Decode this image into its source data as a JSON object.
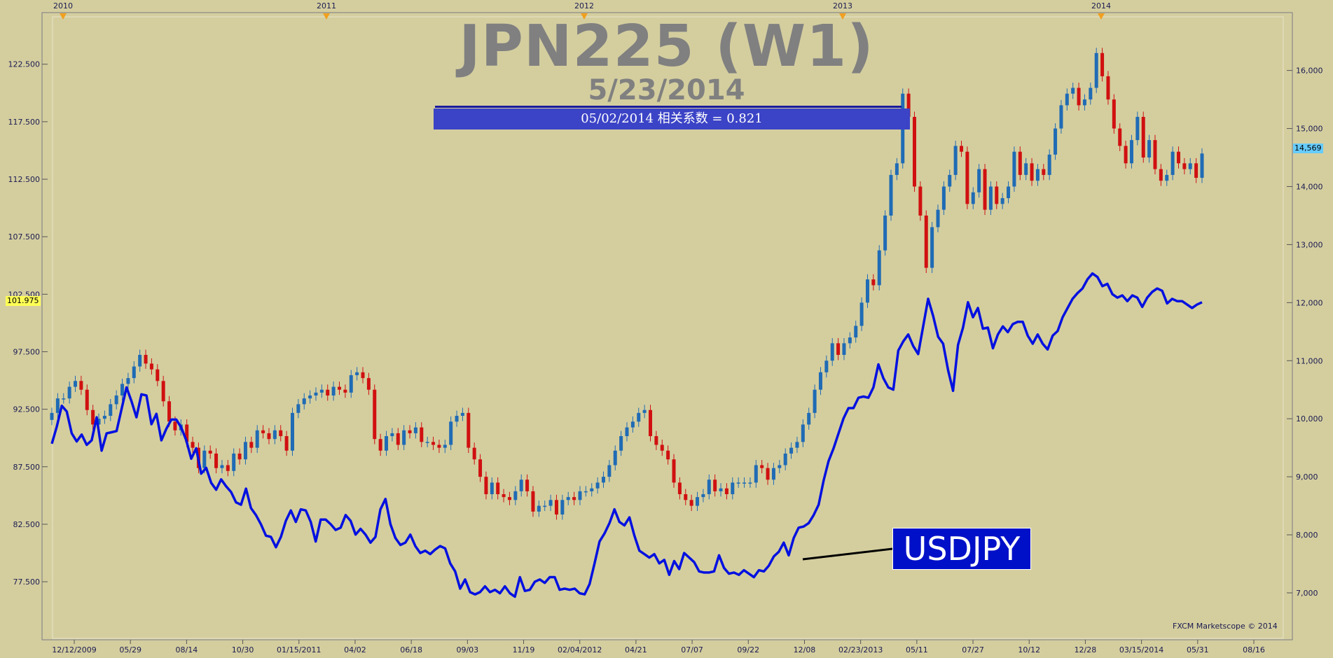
{
  "chart_title": "JPN225 (W1)",
  "chart_date": "5/23/2014",
  "correlation_label": "05/02/2014 相关系数 = 0.821",
  "usdjpy_label": "USDJPY",
  "copyright": "FXCM Marketscope © 2014",
  "left_price_tag": "101.975",
  "right_price_tag": "14,569",
  "colors": {
    "background": "#d4ce9f",
    "up_candle": "#1f6bb5",
    "down_candle": "#d01010",
    "usdjpy_line": "#0010e0",
    "label_box": "#0010c8",
    "corr_bar": "#3b43c6"
  },
  "chart_data": {
    "type": "line",
    "x_ticks_bottom": [
      "12/12/2009",
      "05/29",
      "08/14",
      "10/30",
      "01/15/2011",
      "04/02",
      "06/18",
      "09/03",
      "11/19",
      "02/04/2012",
      "04/21",
      "07/07",
      "09/22",
      "12/08",
      "02/23/2013",
      "05/11",
      "07/27",
      "10/12",
      "12/28",
      "03/15/2014",
      "05/31",
      "08/16"
    ],
    "x_ticks_top": [
      "2010",
      "2011",
      "2012",
      "2013",
      "2014"
    ],
    "left_axis": {
      "label": "USDJPY",
      "ticks": [
        "77.500",
        "82.500",
        "87.500",
        "92.500",
        "97.500",
        "102.500",
        "107.500",
        "112.500",
        "117.500",
        "122.500"
      ],
      "range": [
        73.0,
        126.5
      ]
    },
    "right_axis": {
      "label": "JPN225",
      "ticks": [
        "7,000",
        "8,000",
        "9,000",
        "10,000",
        "11,000",
        "12,000",
        "13,000",
        "14,000",
        "15,000",
        "16,000"
      ],
      "range": [
        6300,
        16900
      ]
    },
    "usdjpy_series": {
      "name": "USDJPY",
      "values": [
        89.5,
        91.0,
        92.8,
        92.3,
        90.4,
        89.7,
        90.3,
        89.4,
        89.8,
        91.8,
        88.9,
        90.4,
        90.5,
        90.6,
        92.5,
        94.4,
        93.2,
        91.8,
        93.8,
        93.7,
        91.2,
        92.1,
        89.8,
        90.8,
        91.6,
        91.6,
        90.9,
        89.8,
        88.2,
        89.1,
        86.9,
        87.4,
        86.1,
        85.5,
        86.4,
        85.8,
        85.3,
        84.4,
        84.2,
        85.6,
        83.9,
        83.3,
        82.5,
        81.5,
        81.4,
        80.5,
        81.4,
        82.8,
        83.7,
        82.7,
        83.8,
        83.7,
        82.7,
        81.0,
        82.9,
        82.9,
        82.5,
        82.0,
        82.2,
        83.3,
        82.8,
        81.6,
        82.1,
        81.6,
        80.9,
        81.4,
        83.8,
        84.7,
        82.5,
        81.3,
        80.7,
        80.9,
        81.6,
        80.6,
        80.0,
        80.2,
        79.9,
        80.3,
        80.6,
        80.4,
        79.1,
        78.4,
        76.9,
        77.7,
        76.6,
        76.4,
        76.6,
        77.1,
        76.6,
        76.8,
        76.5,
        77.1,
        76.5,
        76.2,
        77.9,
        76.7,
        76.8,
        77.5,
        77.7,
        77.4,
        77.9,
        77.9,
        76.8,
        76.9,
        76.8,
        76.9,
        76.5,
        76.4,
        77.3,
        79.1,
        81.0,
        81.7,
        82.6,
        83.8,
        82.7,
        82.4,
        83.1,
        81.5,
        80.2,
        79.9,
        79.6,
        79.9,
        79.1,
        79.4,
        78.1,
        79.3,
        78.6,
        80.0,
        79.6,
        79.2,
        78.4,
        78.3,
        78.3,
        78.4,
        79.8,
        78.7,
        78.2,
        78.3,
        78.1,
        78.5,
        78.2,
        77.9,
        78.5,
        78.4,
        78.9,
        79.7,
        80.1,
        80.9,
        79.8,
        81.3,
        82.2,
        82.3,
        82.6,
        83.3,
        84.2,
        86.3,
        88.0,
        89.1,
        90.4,
        91.7,
        92.6,
        92.6,
        93.5,
        93.6,
        93.5,
        94.4,
        96.4,
        95.2,
        94.4,
        94.2,
        97.6,
        98.4,
        99.0,
        98.0,
        97.3,
        99.7,
        102.1,
        100.6,
        98.8,
        98.2,
        95.9,
        94.1,
        98.1,
        99.6,
        101.8,
        100.5,
        101.3,
        99.5,
        99.6,
        97.8,
        99.0,
        99.7,
        99.2,
        99.9,
        100.1,
        100.1,
        98.9,
        98.2,
        99.0,
        98.2,
        97.7,
        98.9,
        99.3,
        100.5,
        101.3,
        102.1,
        102.6,
        103.0,
        103.8,
        104.3,
        104.0,
        103.2,
        103.4,
        102.5,
        102.2,
        102.4,
        101.9,
        102.4,
        102.2,
        101.4,
        102.2,
        102.7,
        103.0,
        102.8,
        101.7,
        102.1,
        101.9,
        101.9,
        101.6,
        101.3,
        101.6,
        101.8
      ]
    },
    "jpn225_series": {
      "name": "JPN225",
      "close_values": [
        10100,
        10350,
        10350,
        10550,
        10650,
        10500,
        10150,
        9900,
        10000,
        10050,
        10250,
        10400,
        10600,
        10700,
        10900,
        11100,
        10950,
        10850,
        10650,
        10300,
        9950,
        9800,
        9900,
        9600,
        9500,
        9150,
        9450,
        9400,
        9150,
        9200,
        9100,
        9400,
        9300,
        9600,
        9500,
        9800,
        9750,
        9650,
        9800,
        9700,
        9450,
        10100,
        10250,
        10350,
        10400,
        10450,
        10500,
        10400,
        10550,
        10500,
        10450,
        10750,
        10800,
        10700,
        10500,
        9650,
        9450,
        9700,
        9750,
        9550,
        9800,
        9750,
        9850,
        9600,
        9600,
        9550,
        9500,
        9550,
        9950,
        10050,
        10100,
        9500,
        9300,
        9000,
        8700,
        8900,
        8700,
        8650,
        8600,
        8750,
        8950,
        8750,
        8400,
        8500,
        8500,
        8600,
        8350,
        8600,
        8650,
        8600,
        8750,
        8750,
        8800,
        8900,
        9000,
        9200,
        9450,
        9700,
        9850,
        9950,
        10100,
        10150,
        9700,
        9550,
        9450,
        9300,
        8900,
        8700,
        8600,
        8500,
        8650,
        8700,
        8950,
        8750,
        8800,
        8700,
        8900,
        8900,
        8900,
        8900,
        9200,
        9150,
        8950,
        9150,
        9200,
        9400,
        9500,
        9600,
        9900,
        10100,
        10500,
        10800,
        11000,
        11300,
        11100,
        11300,
        11400,
        11600,
        12000,
        12400,
        12300,
        12900,
        13500,
        14200,
        14400,
        15600,
        15200,
        14000,
        13500,
        12600,
        13300,
        13600,
        14000,
        14200,
        14700,
        14600,
        13700,
        13900,
        14300,
        13600,
        14000,
        13700,
        13800,
        14000,
        14600,
        14200,
        14400,
        14100,
        14300,
        14200,
        14550,
        15000,
        15400,
        15600,
        15700,
        15400,
        15500,
        15700,
        16300,
        15900,
        15500,
        15000,
        14700,
        14400,
        14800,
        15200,
        14500,
        14800,
        14300,
        14100,
        14200,
        14600,
        14400,
        14300,
        14400,
        14150,
        14569
      ]
    }
  }
}
